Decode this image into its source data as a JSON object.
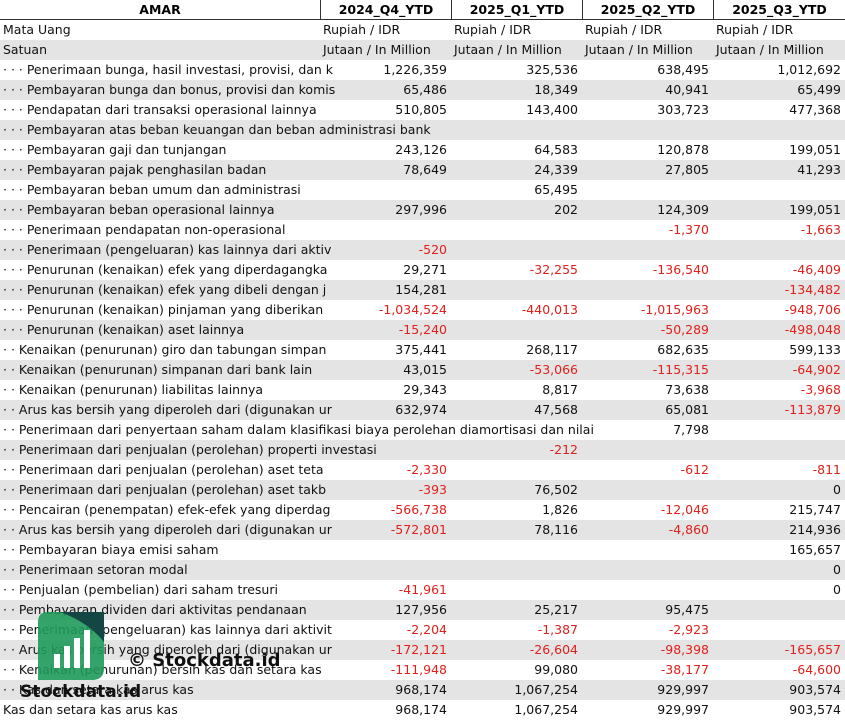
{
  "table": {
    "header": [
      "AMAR",
      "2024_Q4_YTD",
      "2025_Q1_YTD",
      "2025_Q2_YTD",
      "2025_Q3_YTD"
    ],
    "rows": [
      [
        "Mata Uang",
        "Rupiah / IDR",
        "Rupiah / IDR",
        "Rupiah / IDR",
        "Rupiah / IDR"
      ],
      [
        "Satuan",
        "Jutaan / In Million",
        "Jutaan / In Million",
        "Jutaan / In Million",
        "Jutaan / In Million"
      ],
      [
        "· · · Penerimaan bunga, hasil investasi, provisi, dan k",
        "1,226,359",
        "325,536",
        "638,495",
        "1,012,692"
      ],
      [
        "· · · Pembayaran bunga dan bonus, provisi dan komis",
        "65,486",
        "18,349",
        "40,941",
        "65,499"
      ],
      [
        "· · · Pendapatan dari transaksi operasional lainnya",
        "510,805",
        "143,400",
        "303,723",
        "477,368"
      ],
      [
        "· · · Pembayaran atas beban keuangan dan beban administrasi bank",
        null,
        null,
        null,
        null
      ],
      [
        "· · · Pembayaran gaji dan tunjangan",
        "243,126",
        "64,583",
        "120,878",
        "199,051"
      ],
      [
        "· · · Pembayaran pajak penghasilan badan",
        "78,649",
        "24,339",
        "27,805",
        "41,293"
      ],
      [
        "· · · Pembayaran beban umum dan administrasi",
        null,
        "65,495",
        null,
        null
      ],
      [
        "· · · Pembayaran beban operasional lainnya",
        "297,996",
        "202",
        "124,309",
        "199,051"
      ],
      [
        "· · · Penerimaan pendapatan non-operasional",
        null,
        null,
        "-1,370",
        "-1,663"
      ],
      [
        "· · · Penerimaan (pengeluaran) kas lainnya dari aktiv",
        "-520",
        null,
        null,
        null
      ],
      [
        "· · · Penurunan (kenaikan) efek yang diperdagangka",
        "29,271",
        "-32,255",
        "-136,540",
        "-46,409"
      ],
      [
        "· · · Penurunan (kenaikan) efek yang dibeli dengan j",
        "154,281",
        null,
        null,
        "-134,482"
      ],
      [
        "· · · Penurunan (kenaikan) pinjaman yang diberikan",
        "-1,034,524",
        "-440,013",
        "-1,015,963",
        "-948,706"
      ],
      [
        "· · · Penurunan (kenaikan) aset lainnya",
        "-15,240",
        null,
        "-50,289",
        "-498,048"
      ],
      [
        "· · Kenaikan (penurunan) giro dan tabungan simpan",
        "375,441",
        "268,117",
        "682,635",
        "599,133"
      ],
      [
        "· · Kenaikan (penurunan) simpanan dari bank lain",
        "43,015",
        "-53,066",
        "-115,315",
        "-64,902"
      ],
      [
        "· · Kenaikan (penurunan) liabilitas lainnya",
        "29,343",
        "8,817",
        "73,638",
        "-3,968"
      ],
      [
        "· · Arus kas bersih yang diperoleh dari (digunakan ur",
        "632,974",
        "47,568",
        "65,081",
        "-113,879"
      ],
      [
        "· · Penerimaan dari penyertaan saham dalam klasifikasi biaya perolehan diamortisasi dan nilai",
        null,
        null,
        "7,798",
        null
      ],
      [
        "· · Penerimaan dari penjualan (perolehan) properti investasi",
        null,
        "-212",
        null,
        null
      ],
      [
        "· · Penerimaan dari penjualan (perolehan) aset teta",
        "-2,330",
        null,
        "-612",
        "-811"
      ],
      [
        "· · Penerimaan dari penjualan (perolehan) aset takb",
        "-393",
        "76,502",
        null,
        "0"
      ],
      [
        "· · Pencairan (penempatan) efek-efek yang diperdag",
        "-566,738",
        "1,826",
        "-12,046",
        "215,747"
      ],
      [
        "· · Arus kas bersih yang diperoleh dari (digunakan ur",
        "-572,801",
        "78,116",
        "-4,860",
        "214,936"
      ],
      [
        "· · Pembayaran biaya emisi saham",
        null,
        null,
        null,
        "165,657"
      ],
      [
        "· · Penerimaan setoran modal",
        null,
        null,
        null,
        "0"
      ],
      [
        "· · Penjualan (pembelian) dari saham tresuri",
        "-41,961",
        null,
        null,
        "0"
      ],
      [
        "· · Pembayaran dividen dari aktivitas pendanaan",
        "127,956",
        "25,217",
        "95,475",
        null
      ],
      [
        "· · Penerimaan (pengeluaran) kas lainnya dari aktivit",
        "-2,204",
        "-1,387",
        "-2,923",
        null
      ],
      [
        "· · Arus kas bersih yang diperoleh dari (digunakan ur",
        "-172,121",
        "-26,604",
        "-98,398",
        "-165,657"
      ],
      [
        "· · Kenaikan (penurunan) bersih kas dan setara kas",
        "-111,948",
        "99,080",
        "-38,177",
        "-64,600"
      ],
      [
        "· · Kas dan setara kas arus kas",
        "968,174",
        "1,067,254",
        "929,997",
        "903,574"
      ],
      [
        "Kas dan setara kas arus kas",
        "968,174",
        "1,067,254",
        "929,997",
        "903,574"
      ]
    ]
  },
  "watermark": {
    "top": "© Stockdata.id",
    "bottom": "Stockdata.id"
  }
}
